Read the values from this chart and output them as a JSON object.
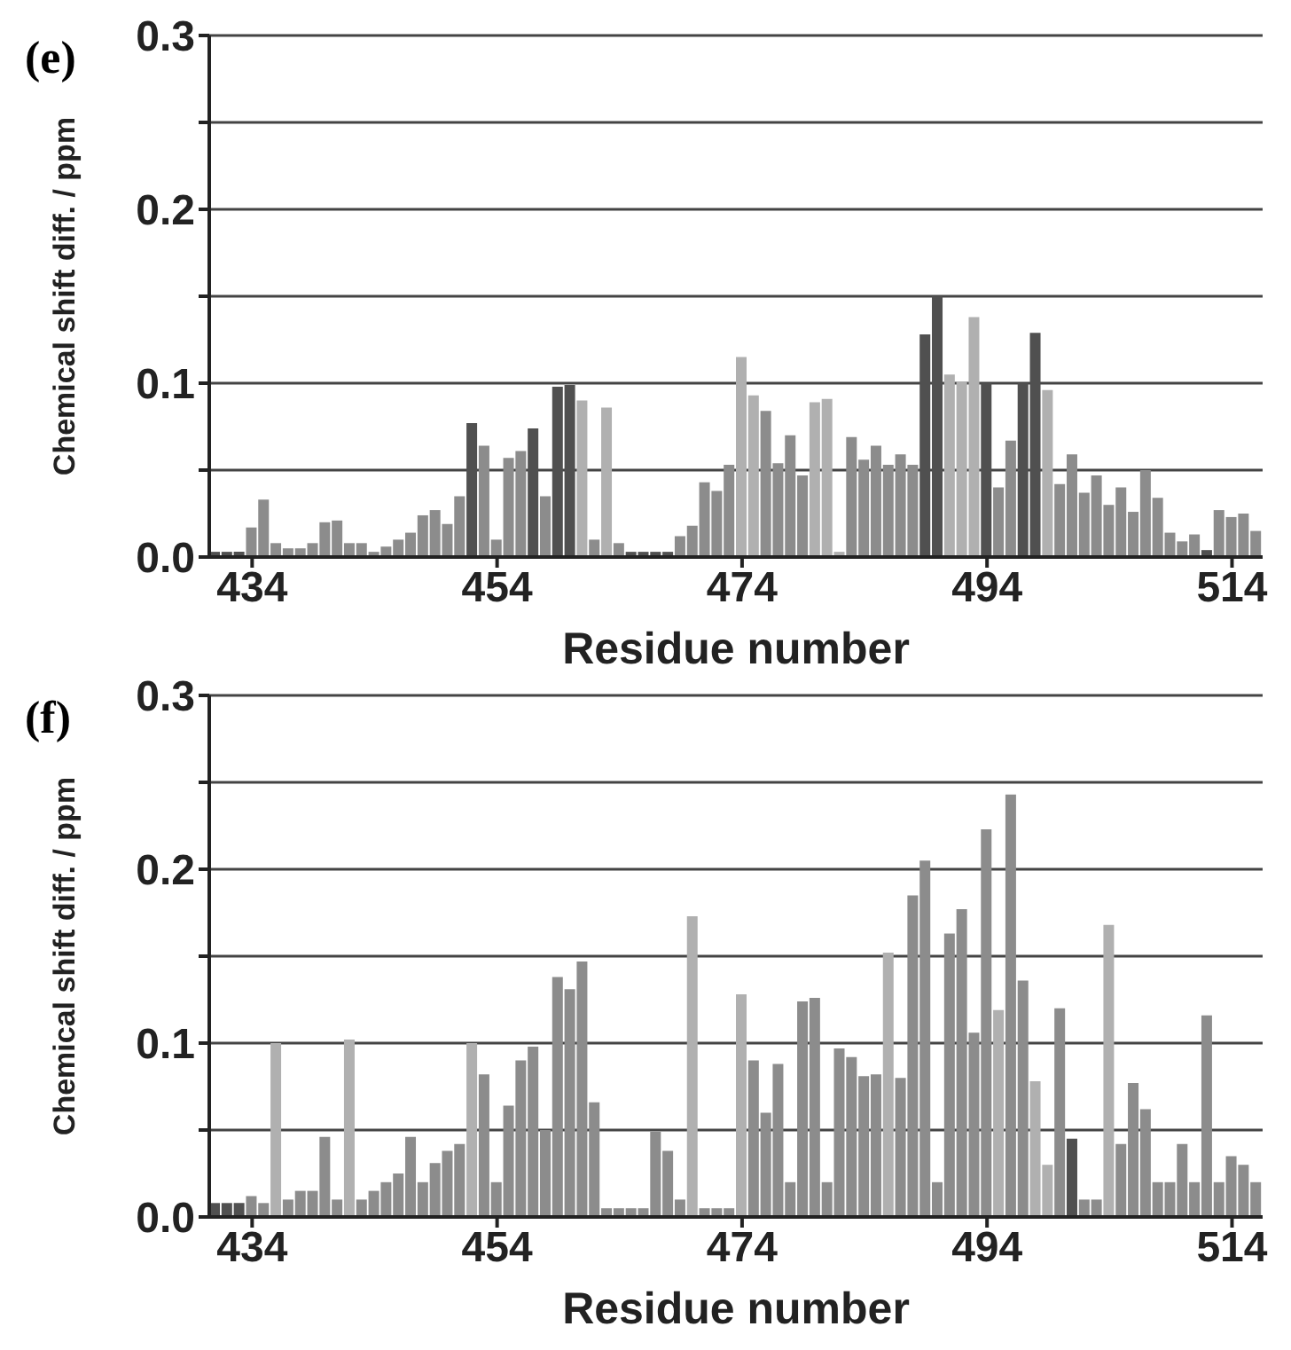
{
  "chart_data": [
    {
      "type": "bar",
      "title": "(e)",
      "xlabel": "Residue number",
      "ylabel": "Chemical shift diff. / ppm",
      "x": [
        431,
        432,
        433,
        434,
        435,
        436,
        437,
        438,
        439,
        440,
        441,
        442,
        443,
        444,
        445,
        446,
        447,
        448,
        449,
        450,
        451,
        452,
        453,
        454,
        455,
        456,
        457,
        458,
        459,
        460,
        461,
        462,
        463,
        464,
        465,
        466,
        467,
        468,
        469,
        470,
        471,
        472,
        473,
        474,
        475,
        476,
        477,
        478,
        479,
        480,
        481,
        482,
        483,
        484,
        485,
        486,
        487,
        488,
        489,
        490,
        491,
        492,
        493,
        494,
        495,
        496,
        497,
        498,
        499,
        500,
        501,
        502,
        503,
        504,
        505,
        506,
        507,
        508,
        509,
        510,
        511,
        512,
        513,
        514,
        515,
        516
      ],
      "values": [
        0.003,
        0.003,
        0.003,
        0.017,
        0.033,
        0.008,
        0.005,
        0.005,
        0.008,
        0.02,
        0.021,
        0.008,
        0.008,
        0.003,
        0.006,
        0.01,
        0.014,
        0.024,
        0.027,
        0.019,
        0.035,
        0.077,
        0.064,
        0.01,
        0.057,
        0.061,
        0.074,
        0.035,
        0.098,
        0.099,
        0.09,
        0.01,
        0.086,
        0.008,
        0.003,
        0.003,
        0.003,
        0.003,
        0.012,
        0.018,
        0.043,
        0.038,
        0.053,
        0.115,
        0.093,
        0.084,
        0.054,
        0.07,
        0.047,
        0.089,
        0.091,
        0.003,
        0.069,
        0.056,
        0.064,
        0.053,
        0.059,
        0.053,
        0.128,
        0.15,
        0.105,
        0.101,
        0.138,
        0.1,
        0.04,
        0.067,
        0.1,
        0.129,
        0.096,
        0.042,
        0.059,
        0.037,
        0.047,
        0.03,
        0.04,
        0.026,
        0.05,
        0.034,
        0.014,
        0.009,
        0.013,
        0.004,
        0.027,
        0.023,
        0.025,
        0.015
      ],
      "colors": [
        "#505050",
        "#505050",
        "#505050",
        "#8c8c8c",
        "#8c8c8c",
        "#8c8c8c",
        "#8c8c8c",
        "#8c8c8c",
        "#8c8c8c",
        "#8c8c8c",
        "#8c8c8c",
        "#8c8c8c",
        "#8c8c8c",
        "#8c8c8c",
        "#8c8c8c",
        "#8c8c8c",
        "#8c8c8c",
        "#8c8c8c",
        "#8c8c8c",
        "#8c8c8c",
        "#8c8c8c",
        "#505050",
        "#8c8c8c",
        "#8c8c8c",
        "#8c8c8c",
        "#8c8c8c",
        "#505050",
        "#8c8c8c",
        "#505050",
        "#505050",
        "#b0b0b0",
        "#8c8c8c",
        "#b0b0b0",
        "#8c8c8c",
        "#505050",
        "#505050",
        "#505050",
        "#505050",
        "#8c8c8c",
        "#8c8c8c",
        "#8c8c8c",
        "#8c8c8c",
        "#8c8c8c",
        "#b0b0b0",
        "#b0b0b0",
        "#8c8c8c",
        "#8c8c8c",
        "#8c8c8c",
        "#8c8c8c",
        "#b0b0b0",
        "#b0b0b0",
        "#b0b0b0",
        "#8c8c8c",
        "#8c8c8c",
        "#8c8c8c",
        "#8c8c8c",
        "#8c8c8c",
        "#8c8c8c",
        "#505050",
        "#505050",
        "#b0b0b0",
        "#b0b0b0",
        "#b0b0b0",
        "#505050",
        "#8c8c8c",
        "#8c8c8c",
        "#505050",
        "#505050",
        "#b0b0b0",
        "#8c8c8c",
        "#8c8c8c",
        "#8c8c8c",
        "#8c8c8c",
        "#8c8c8c",
        "#8c8c8c",
        "#8c8c8c",
        "#8c8c8c",
        "#8c8c8c",
        "#8c8c8c",
        "#8c8c8c",
        "#8c8c8c",
        "#505050",
        "#8c8c8c",
        "#8c8c8c",
        "#8c8c8c",
        "#8c8c8c"
      ],
      "xlim": [
        430.5,
        516.5
      ],
      "xticks": [
        434,
        454,
        474,
        494,
        514
      ],
      "ylim": [
        0,
        0.3
      ],
      "yticks": [
        {
          "value": 0,
          "label": "0.0"
        },
        {
          "value": 0.05,
          "label": null
        },
        0.1,
        {
          "value": 0.15,
          "label": null
        },
        0.2,
        {
          "value": 0.25,
          "label": null
        },
        0.3
      ],
      "grid": "y"
    },
    {
      "type": "bar",
      "title": "(f)",
      "xlabel": "Residue number",
      "ylabel": "Chemical shift diff. / ppm",
      "x": [
        431,
        432,
        433,
        434,
        435,
        436,
        437,
        438,
        439,
        440,
        441,
        442,
        443,
        444,
        445,
        446,
        447,
        448,
        449,
        450,
        451,
        452,
        453,
        454,
        455,
        456,
        457,
        458,
        459,
        460,
        461,
        462,
        463,
        464,
        465,
        466,
        467,
        468,
        469,
        470,
        471,
        472,
        473,
        474,
        475,
        476,
        477,
        478,
        479,
        480,
        481,
        482,
        483,
        484,
        485,
        486,
        487,
        488,
        489,
        490,
        491,
        492,
        493,
        494,
        495,
        496,
        497,
        498,
        499,
        500,
        501,
        502,
        503,
        504,
        505,
        506,
        507,
        508,
        509,
        510,
        511,
        512,
        513,
        514,
        515,
        516
      ],
      "values": [
        0.008,
        0.008,
        0.008,
        0.012,
        0.008,
        0.1,
        0.01,
        0.015,
        0.015,
        0.046,
        0.01,
        0.102,
        0.01,
        0.015,
        0.02,
        0.025,
        0.046,
        0.02,
        0.031,
        0.038,
        0.042,
        0.1,
        0.082,
        0.02,
        0.064,
        0.09,
        0.098,
        0.05,
        0.138,
        0.131,
        0.147,
        0.066,
        0.005,
        0.005,
        0.005,
        0.005,
        0.049,
        0.038,
        0.01,
        0.173,
        0.005,
        0.005,
        0.005,
        0.128,
        0.09,
        0.06,
        0.088,
        0.02,
        0.124,
        0.126,
        0.02,
        0.097,
        0.092,
        0.081,
        0.082,
        0.152,
        0.08,
        0.185,
        0.205,
        0.02,
        0.163,
        0.177,
        0.106,
        0.223,
        0.119,
        0.243,
        0.136,
        0.078,
        0.03,
        0.12,
        0.045,
        0.01,
        0.01,
        0.168,
        0.042,
        0.077,
        0.062,
        0.02,
        0.02,
        0.042,
        0.02,
        0.116,
        0.02,
        0.035,
        0.03,
        0.02
      ],
      "colors": [
        "#505050",
        "#505050",
        "#505050",
        "#8c8c8c",
        "#8c8c8c",
        "#b0b0b0",
        "#8c8c8c",
        "#8c8c8c",
        "#8c8c8c",
        "#8c8c8c",
        "#8c8c8c",
        "#b0b0b0",
        "#8c8c8c",
        "#8c8c8c",
        "#8c8c8c",
        "#8c8c8c",
        "#8c8c8c",
        "#8c8c8c",
        "#8c8c8c",
        "#8c8c8c",
        "#8c8c8c",
        "#b0b0b0",
        "#8c8c8c",
        "#8c8c8c",
        "#8c8c8c",
        "#8c8c8c",
        "#8c8c8c",
        "#8c8c8c",
        "#8c8c8c",
        "#8c8c8c",
        "#8c8c8c",
        "#8c8c8c",
        "#8c8c8c",
        "#8c8c8c",
        "#8c8c8c",
        "#8c8c8c",
        "#8c8c8c",
        "#8c8c8c",
        "#8c8c8c",
        "#b0b0b0",
        "#8c8c8c",
        "#8c8c8c",
        "#8c8c8c",
        "#b0b0b0",
        "#8c8c8c",
        "#8c8c8c",
        "#8c8c8c",
        "#8c8c8c",
        "#8c8c8c",
        "#8c8c8c",
        "#8c8c8c",
        "#8c8c8c",
        "#8c8c8c",
        "#8c8c8c",
        "#8c8c8c",
        "#b0b0b0",
        "#8c8c8c",
        "#8c8c8c",
        "#8c8c8c",
        "#8c8c8c",
        "#8c8c8c",
        "#8c8c8c",
        "#8c8c8c",
        "#8c8c8c",
        "#b0b0b0",
        "#8c8c8c",
        "#8c8c8c",
        "#b0b0b0",
        "#b0b0b0",
        "#8c8c8c",
        "#505050",
        "#8c8c8c",
        "#8c8c8c",
        "#b0b0b0",
        "#8c8c8c",
        "#8c8c8c",
        "#8c8c8c",
        "#8c8c8c",
        "#8c8c8c",
        "#8c8c8c",
        "#8c8c8c",
        "#8c8c8c",
        "#8c8c8c",
        "#8c8c8c",
        "#8c8c8c",
        "#8c8c8c"
      ],
      "xlim": [
        430.5,
        516.5
      ],
      "xticks": [
        434,
        454,
        474,
        494,
        514
      ],
      "ylim": [
        0,
        0.3
      ],
      "yticks": [
        {
          "value": 0,
          "label": "0.0"
        },
        {
          "value": 0.05,
          "label": null
        },
        0.1,
        {
          "value": 0.15,
          "label": null
        },
        0.2,
        {
          "value": 0.25,
          "label": null
        },
        0.3
      ],
      "grid": "y"
    }
  ]
}
